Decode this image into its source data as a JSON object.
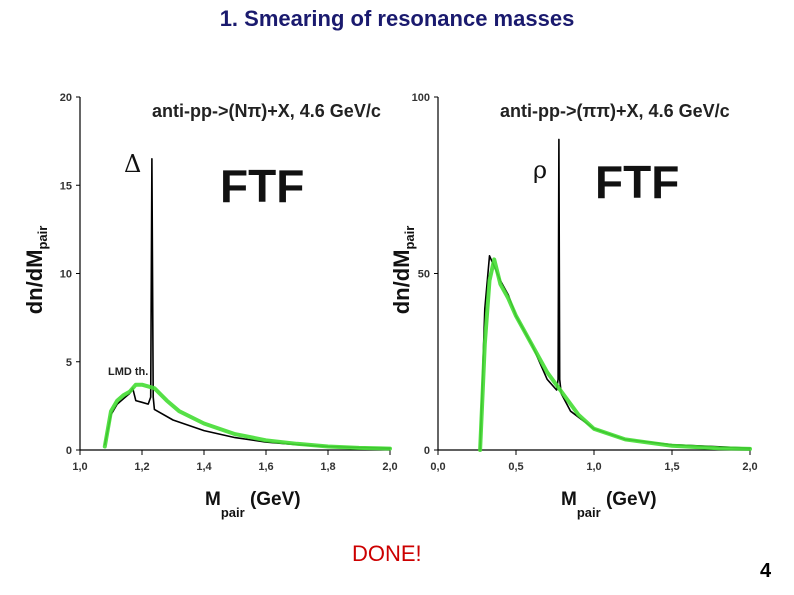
{
  "slide": {
    "title": "1. Smearing of resonance masses",
    "footer_text": "DONE!",
    "page_number": "4",
    "colors": {
      "title": "#1a1a6e",
      "footer": "#cc0000",
      "green_curve": "#44dd33",
      "black_curve": "#000000"
    }
  },
  "chart_data": [
    {
      "type": "line",
      "title": "anti-pp->(Nπ)+X, 4.6 GeV/c",
      "xlabel": "M",
      "xlabel_sub": "pair",
      "xlabel_unit": "(GeV)",
      "ylabel": "dn/dM",
      "ylabel_sub": "pair",
      "xlim": [
        1.0,
        2.0
      ],
      "ylim": [
        0,
        20
      ],
      "x_ticks": [
        1.0,
        1.2,
        1.4,
        1.6,
        1.8,
        2.0
      ],
      "x_tick_labels": [
        "1,0",
        "1,2",
        "1,4",
        "1,6",
        "1,8",
        "2,0"
      ],
      "y_ticks": [
        0,
        5,
        10,
        15,
        20
      ],
      "y_tick_labels": [
        "0",
        "5",
        "10",
        "15",
        "20"
      ],
      "annotations": {
        "model": "FTF",
        "resonance": "Δ",
        "threshold": "LMD th."
      },
      "series": [
        {
          "color": "#000000",
          "x": [
            1.08,
            1.1,
            1.12,
            1.14,
            1.16,
            1.17,
            1.18,
            1.2,
            1.22,
            1.228,
            1.232,
            1.236,
            1.24,
            1.3,
            1.4,
            1.5,
            1.6,
            1.7,
            1.8,
            1.9,
            2.0
          ],
          "y": [
            0.3,
            2.0,
            2.6,
            2.9,
            3.2,
            3.5,
            2.8,
            2.7,
            2.6,
            3.0,
            16.5,
            3.0,
            2.3,
            1.7,
            1.1,
            0.7,
            0.45,
            0.3,
            0.2,
            0.15,
            0.1
          ]
        },
        {
          "color": "#44dd33",
          "x": [
            1.08,
            1.1,
            1.12,
            1.14,
            1.16,
            1.18,
            1.2,
            1.24,
            1.28,
            1.32,
            1.4,
            1.5,
            1.6,
            1.7,
            1.8,
            1.9,
            2.0
          ],
          "y": [
            0.2,
            2.2,
            2.8,
            3.1,
            3.3,
            3.7,
            3.7,
            3.5,
            2.8,
            2.2,
            1.5,
            0.9,
            0.55,
            0.35,
            0.2,
            0.12,
            0.08
          ]
        }
      ]
    },
    {
      "type": "line",
      "title": "anti-pp->(ππ)+X, 4.6 GeV/c",
      "xlabel": "M",
      "xlabel_sub": "pair",
      "xlabel_unit": "(GeV)",
      "ylabel": "dn/dM",
      "ylabel_sub": "pair",
      "xlim": [
        0.0,
        2.0
      ],
      "ylim": [
        0,
        100
      ],
      "x_ticks": [
        0.0,
        0.5,
        1.0,
        1.5,
        2.0
      ],
      "x_tick_labels": [
        "0,0",
        "0,5",
        "1,0",
        "1,5",
        "2,0"
      ],
      "y_ticks": [
        0,
        50,
        100
      ],
      "y_tick_labels": [
        "0",
        "50",
        "100"
      ],
      "annotations": {
        "model": "FTF",
        "resonance": "ρ"
      },
      "series": [
        {
          "color": "#000000",
          "x": [
            0.27,
            0.3,
            0.33,
            0.36,
            0.4,
            0.45,
            0.5,
            0.6,
            0.7,
            0.76,
            0.77,
            0.775,
            0.78,
            0.79,
            0.85,
            1.0,
            1.2,
            1.5,
            2.0
          ],
          "y": [
            0,
            40,
            55,
            52,
            48,
            44,
            38,
            30,
            20,
            17,
            20,
            88,
            20,
            16,
            11,
            6,
            3,
            1.5,
            0.5
          ]
        },
        {
          "color": "#44dd33",
          "x": [
            0.27,
            0.3,
            0.33,
            0.36,
            0.4,
            0.45,
            0.5,
            0.6,
            0.7,
            0.75,
            0.8,
            0.9,
            1.0,
            1.2,
            1.5,
            1.8,
            2.0
          ],
          "y": [
            0,
            30,
            48,
            54,
            47,
            43,
            38,
            30,
            22,
            19,
            16,
            10,
            6,
            3,
            1.2,
            0.5,
            0.3
          ]
        }
      ]
    }
  ]
}
